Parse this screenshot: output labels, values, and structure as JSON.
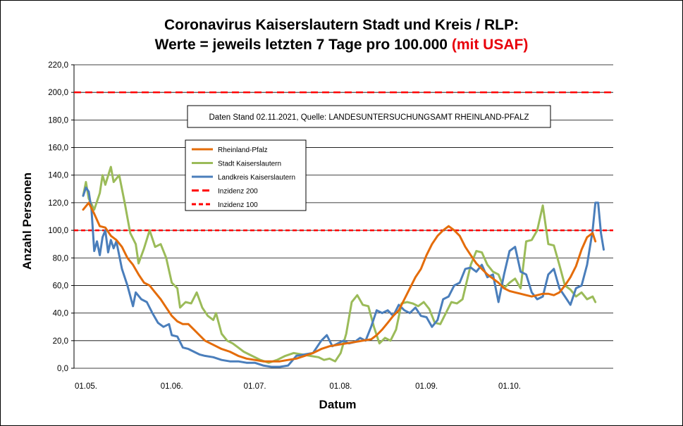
{
  "chart_data": {
    "type": "line",
    "title_line1": "Coronavirus Kaiserslautern Stadt und Kreis / RLP:",
    "title_line2_prefix": "Werte = jeweils letzten 7 Tage pro 100.000 ",
    "title_line2_highlight": "(mit USAF)",
    "xlabel": "Datum",
    "ylabel": "Anzahl Personen",
    "annotation": "Daten Stand 02.11.2021, Quelle: LANDESUNTERSUCHUNGSAMT RHEINLAND-PFALZ",
    "ylim": [
      0,
      220
    ],
    "yticks": [
      "0,0",
      "20,0",
      "40,0",
      "60,0",
      "80,0",
      "100,0",
      "120,0",
      "140,0",
      "160,0",
      "180,0",
      "200,0",
      "220,0"
    ],
    "xlim": [
      "2021-05-01",
      "2021-11-02"
    ],
    "xticks": [
      {
        "label": "01.05.",
        "date": "2021-05-01"
      },
      {
        "label": "01.06.",
        "date": "2021-06-01"
      },
      {
        "label": "01.07.",
        "date": "2021-07-01"
      },
      {
        "label": "01.08.",
        "date": "2021-08-01"
      },
      {
        "label": "01.09.",
        "date": "2021-09-01"
      },
      {
        "label": "01.10.",
        "date": "2021-10-01"
      }
    ],
    "grid": "horizontal",
    "legend_position": "upper-left inside plot",
    "series": [
      {
        "name": "Rheinland-Pfalz",
        "color": "#e46c0a",
        "points": [
          [
            "2021-05-01",
            115
          ],
          [
            "2021-05-03",
            120
          ],
          [
            "2021-05-05",
            112
          ],
          [
            "2021-05-07",
            103
          ],
          [
            "2021-05-09",
            102
          ],
          [
            "2021-05-11",
            96
          ],
          [
            "2021-05-13",
            93
          ],
          [
            "2021-05-15",
            88
          ],
          [
            "2021-05-17",
            80
          ],
          [
            "2021-05-19",
            75
          ],
          [
            "2021-05-21",
            68
          ],
          [
            "2021-05-23",
            62
          ],
          [
            "2021-05-25",
            60
          ],
          [
            "2021-05-27",
            55
          ],
          [
            "2021-05-29",
            50
          ],
          [
            "2021-05-31",
            44
          ],
          [
            "2021-06-02",
            38
          ],
          [
            "2021-06-04",
            34
          ],
          [
            "2021-06-06",
            32
          ],
          [
            "2021-06-08",
            32
          ],
          [
            "2021-06-10",
            28
          ],
          [
            "2021-06-12",
            24
          ],
          [
            "2021-06-14",
            20
          ],
          [
            "2021-06-17",
            17
          ],
          [
            "2021-06-20",
            14
          ],
          [
            "2021-06-23",
            12
          ],
          [
            "2021-06-26",
            9
          ],
          [
            "2021-06-29",
            7
          ],
          [
            "2021-07-02",
            6
          ],
          [
            "2021-07-05",
            5
          ],
          [
            "2021-07-08",
            5
          ],
          [
            "2021-07-11",
            5
          ],
          [
            "2021-07-14",
            6
          ],
          [
            "2021-07-17",
            7
          ],
          [
            "2021-07-20",
            9
          ],
          [
            "2021-07-23",
            11
          ],
          [
            "2021-07-26",
            14
          ],
          [
            "2021-07-29",
            16
          ],
          [
            "2021-08-01",
            17
          ],
          [
            "2021-08-04",
            18
          ],
          [
            "2021-08-07",
            19
          ],
          [
            "2021-08-10",
            20
          ],
          [
            "2021-08-13",
            21
          ],
          [
            "2021-08-15",
            24
          ],
          [
            "2021-08-17",
            28
          ],
          [
            "2021-08-19",
            33
          ],
          [
            "2021-08-21",
            38
          ],
          [
            "2021-08-23",
            42
          ],
          [
            "2021-08-25",
            50
          ],
          [
            "2021-08-27",
            58
          ],
          [
            "2021-08-29",
            66
          ],
          [
            "2021-08-31",
            72
          ],
          [
            "2021-09-02",
            82
          ],
          [
            "2021-09-04",
            90
          ],
          [
            "2021-09-06",
            96
          ],
          [
            "2021-09-08",
            100
          ],
          [
            "2021-09-10",
            103
          ],
          [
            "2021-09-12",
            100
          ],
          [
            "2021-09-14",
            96
          ],
          [
            "2021-09-16",
            88
          ],
          [
            "2021-09-18",
            82
          ],
          [
            "2021-09-20",
            76
          ],
          [
            "2021-09-22",
            72
          ],
          [
            "2021-09-24",
            68
          ],
          [
            "2021-09-26",
            65
          ],
          [
            "2021-09-28",
            62
          ],
          [
            "2021-09-30",
            58
          ],
          [
            "2021-10-02",
            56
          ],
          [
            "2021-10-04",
            55
          ],
          [
            "2021-10-06",
            54
          ],
          [
            "2021-10-08",
            53
          ],
          [
            "2021-10-10",
            52
          ],
          [
            "2021-10-12",
            53
          ],
          [
            "2021-10-14",
            54
          ],
          [
            "2021-10-16",
            54
          ],
          [
            "2021-10-18",
            53
          ],
          [
            "2021-10-20",
            55
          ],
          [
            "2021-10-22",
            60
          ],
          [
            "2021-10-24",
            66
          ],
          [
            "2021-10-26",
            74
          ],
          [
            "2021-10-28",
            86
          ],
          [
            "2021-10-30",
            95
          ],
          [
            "2021-11-01",
            98
          ],
          [
            "2021-11-02",
            92
          ]
        ]
      },
      {
        "name": "Stadt Kaiserslautern",
        "color": "#9bbb59",
        "points": [
          [
            "2021-05-01",
            125
          ],
          [
            "2021-05-02",
            135
          ],
          [
            "2021-05-03",
            123
          ],
          [
            "2021-05-05",
            115
          ],
          [
            "2021-05-07",
            127
          ],
          [
            "2021-05-08",
            140
          ],
          [
            "2021-05-09",
            133
          ],
          [
            "2021-05-11",
            146
          ],
          [
            "2021-05-12",
            135
          ],
          [
            "2021-05-14",
            140
          ],
          [
            "2021-05-16",
            120
          ],
          [
            "2021-05-18",
            98
          ],
          [
            "2021-05-20",
            90
          ],
          [
            "2021-05-21",
            76
          ],
          [
            "2021-05-23",
            87
          ],
          [
            "2021-05-25",
            100
          ],
          [
            "2021-05-27",
            88
          ],
          [
            "2021-05-29",
            90
          ],
          [
            "2021-05-31",
            80
          ],
          [
            "2021-06-02",
            62
          ],
          [
            "2021-06-04",
            58
          ],
          [
            "2021-06-05",
            44
          ],
          [
            "2021-06-07",
            48
          ],
          [
            "2021-06-09",
            47
          ],
          [
            "2021-06-11",
            55
          ],
          [
            "2021-06-13",
            44
          ],
          [
            "2021-06-15",
            38
          ],
          [
            "2021-06-17",
            35
          ],
          [
            "2021-06-18",
            40
          ],
          [
            "2021-06-20",
            25
          ],
          [
            "2021-06-22",
            20
          ],
          [
            "2021-06-24",
            18
          ],
          [
            "2021-06-26",
            15
          ],
          [
            "2021-06-28",
            12
          ],
          [
            "2021-07-01",
            9
          ],
          [
            "2021-07-04",
            6
          ],
          [
            "2021-07-07",
            4
          ],
          [
            "2021-07-10",
            6
          ],
          [
            "2021-07-13",
            9
          ],
          [
            "2021-07-16",
            11
          ],
          [
            "2021-07-19",
            10
          ],
          [
            "2021-07-22",
            9
          ],
          [
            "2021-07-25",
            8
          ],
          [
            "2021-07-27",
            6
          ],
          [
            "2021-07-29",
            7
          ],
          [
            "2021-07-31",
            5
          ],
          [
            "2021-08-02",
            11
          ],
          [
            "2021-08-04",
            25
          ],
          [
            "2021-08-06",
            48
          ],
          [
            "2021-08-08",
            53
          ],
          [
            "2021-08-10",
            46
          ],
          [
            "2021-08-12",
            45
          ],
          [
            "2021-08-14",
            30
          ],
          [
            "2021-08-16",
            18
          ],
          [
            "2021-08-18",
            22
          ],
          [
            "2021-08-20",
            20
          ],
          [
            "2021-08-22",
            28
          ],
          [
            "2021-08-24",
            47
          ],
          [
            "2021-08-26",
            48
          ],
          [
            "2021-08-28",
            47
          ],
          [
            "2021-08-30",
            45
          ],
          [
            "2021-09-01",
            48
          ],
          [
            "2021-09-03",
            43
          ],
          [
            "2021-09-05",
            33
          ],
          [
            "2021-09-07",
            32
          ],
          [
            "2021-09-09",
            40
          ],
          [
            "2021-09-11",
            48
          ],
          [
            "2021-09-13",
            47
          ],
          [
            "2021-09-15",
            50
          ],
          [
            "2021-09-18",
            75
          ],
          [
            "2021-09-20",
            85
          ],
          [
            "2021-09-22",
            84
          ],
          [
            "2021-09-24",
            75
          ],
          [
            "2021-09-26",
            70
          ],
          [
            "2021-09-28",
            68
          ],
          [
            "2021-09-30",
            58
          ],
          [
            "2021-10-02",
            62
          ],
          [
            "2021-10-04",
            65
          ],
          [
            "2021-10-06",
            58
          ],
          [
            "2021-10-08",
            92
          ],
          [
            "2021-10-10",
            93
          ],
          [
            "2021-10-12",
            100
          ],
          [
            "2021-10-14",
            118
          ],
          [
            "2021-10-16",
            90
          ],
          [
            "2021-10-18",
            89
          ],
          [
            "2021-10-20",
            75
          ],
          [
            "2021-10-22",
            60
          ],
          [
            "2021-10-24",
            57
          ],
          [
            "2021-10-26",
            52
          ],
          [
            "2021-10-28",
            55
          ],
          [
            "2021-10-30",
            50
          ],
          [
            "2021-11-01",
            52
          ],
          [
            "2021-11-02",
            48
          ]
        ]
      },
      {
        "name": "Landkreis Kaiserslautern",
        "color": "#4a7ebb",
        "points": [
          [
            "2021-05-01",
            125
          ],
          [
            "2021-05-02",
            131
          ],
          [
            "2021-05-03",
            128
          ],
          [
            "2021-05-04",
            115
          ],
          [
            "2021-05-05",
            85
          ],
          [
            "2021-05-06",
            92
          ],
          [
            "2021-05-07",
            82
          ],
          [
            "2021-05-08",
            95
          ],
          [
            "2021-05-09",
            100
          ],
          [
            "2021-05-10",
            84
          ],
          [
            "2021-05-11",
            93
          ],
          [
            "2021-05-12",
            87
          ],
          [
            "2021-05-13",
            92
          ],
          [
            "2021-05-15",
            72
          ],
          [
            "2021-05-17",
            60
          ],
          [
            "2021-05-19",
            45
          ],
          [
            "2021-05-20",
            55
          ],
          [
            "2021-05-22",
            50
          ],
          [
            "2021-05-24",
            48
          ],
          [
            "2021-05-26",
            40
          ],
          [
            "2021-05-28",
            33
          ],
          [
            "2021-05-30",
            30
          ],
          [
            "2021-06-01",
            32
          ],
          [
            "2021-06-02",
            24
          ],
          [
            "2021-06-04",
            23
          ],
          [
            "2021-06-06",
            15
          ],
          [
            "2021-06-08",
            14
          ],
          [
            "2021-06-10",
            12
          ],
          [
            "2021-06-12",
            10
          ],
          [
            "2021-06-14",
            9
          ],
          [
            "2021-06-17",
            8
          ],
          [
            "2021-06-20",
            6
          ],
          [
            "2021-06-23",
            5
          ],
          [
            "2021-06-26",
            5
          ],
          [
            "2021-06-29",
            4
          ],
          [
            "2021-07-02",
            4
          ],
          [
            "2021-07-05",
            2
          ],
          [
            "2021-07-08",
            1
          ],
          [
            "2021-07-11",
            1
          ],
          [
            "2021-07-14",
            2
          ],
          [
            "2021-07-17",
            9
          ],
          [
            "2021-07-20",
            10
          ],
          [
            "2021-07-23",
            11
          ],
          [
            "2021-07-26",
            20
          ],
          [
            "2021-07-28",
            24
          ],
          [
            "2021-07-30",
            16
          ],
          [
            "2021-08-01",
            18
          ],
          [
            "2021-08-03",
            20
          ],
          [
            "2021-08-05",
            18
          ],
          [
            "2021-08-07",
            19
          ],
          [
            "2021-08-09",
            22
          ],
          [
            "2021-08-11",
            20
          ],
          [
            "2021-08-13",
            30
          ],
          [
            "2021-08-15",
            42
          ],
          [
            "2021-08-17",
            40
          ],
          [
            "2021-08-19",
            42
          ],
          [
            "2021-08-21",
            38
          ],
          [
            "2021-08-23",
            46
          ],
          [
            "2021-08-25",
            42
          ],
          [
            "2021-08-27",
            40
          ],
          [
            "2021-08-29",
            44
          ],
          [
            "2021-08-31",
            38
          ],
          [
            "2021-09-02",
            37
          ],
          [
            "2021-09-04",
            30
          ],
          [
            "2021-09-06",
            35
          ],
          [
            "2021-09-08",
            50
          ],
          [
            "2021-09-10",
            52
          ],
          [
            "2021-09-12",
            60
          ],
          [
            "2021-09-14",
            62
          ],
          [
            "2021-09-16",
            72
          ],
          [
            "2021-09-18",
            73
          ],
          [
            "2021-09-20",
            70
          ],
          [
            "2021-09-22",
            75
          ],
          [
            "2021-09-24",
            66
          ],
          [
            "2021-09-26",
            68
          ],
          [
            "2021-09-28",
            48
          ],
          [
            "2021-09-30",
            68
          ],
          [
            "2021-10-02",
            85
          ],
          [
            "2021-10-04",
            88
          ],
          [
            "2021-10-06",
            70
          ],
          [
            "2021-10-08",
            68
          ],
          [
            "2021-10-10",
            55
          ],
          [
            "2021-10-12",
            50
          ],
          [
            "2021-10-14",
            52
          ],
          [
            "2021-10-16",
            68
          ],
          [
            "2021-10-18",
            72
          ],
          [
            "2021-10-20",
            58
          ],
          [
            "2021-10-22",
            52
          ],
          [
            "2021-10-24",
            46
          ],
          [
            "2021-10-26",
            58
          ],
          [
            "2021-10-28",
            60
          ],
          [
            "2021-10-30",
            75
          ],
          [
            "2021-11-01",
            100
          ],
          [
            "2021-11-02",
            120
          ],
          [
            "2021-11-03",
            120
          ],
          [
            "2021-11-04",
            98
          ],
          [
            "2021-11-05",
            86
          ]
        ]
      },
      {
        "name": "Inzidenz 200",
        "color": "#ff0000",
        "dash": "long",
        "value": 200
      },
      {
        "name": "Inzidenz 100",
        "color": "#ff0000",
        "dash": "short",
        "value": 100
      }
    ]
  }
}
